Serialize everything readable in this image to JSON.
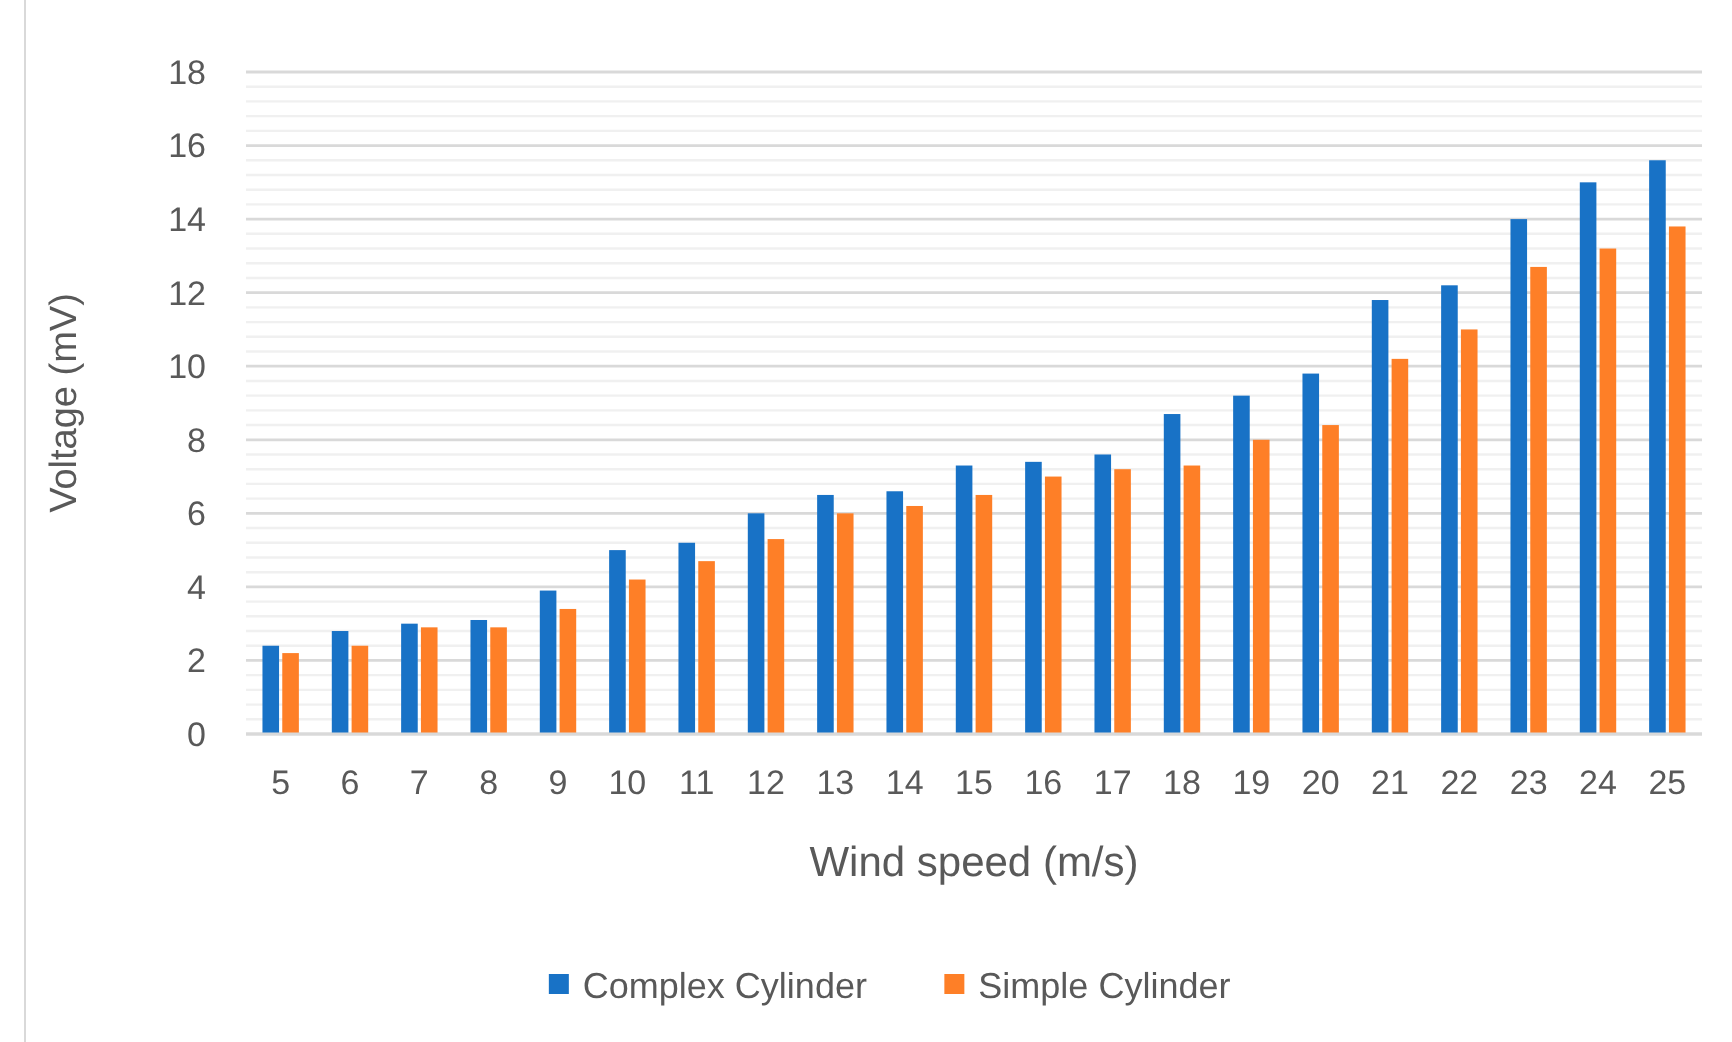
{
  "chart_data": {
    "type": "bar",
    "xlabel": "Wind speed (m/s)",
    "ylabel": "Voltage (mV)",
    "categories": [
      "5",
      "6",
      "7",
      "8",
      "9",
      "10",
      "11",
      "12",
      "13",
      "14",
      "15",
      "16",
      "17",
      "18",
      "19",
      "20",
      "21",
      "22",
      "23",
      "24",
      "25"
    ],
    "series": [
      {
        "name": "Complex Cylinder",
        "color": "#1872c6",
        "values": [
          2.4,
          2.8,
          3.0,
          3.1,
          3.9,
          5.0,
          5.2,
          6.0,
          6.5,
          6.6,
          7.3,
          7.4,
          7.6,
          8.7,
          9.2,
          9.8,
          11.8,
          12.2,
          14.0,
          15.0,
          15.6
        ]
      },
      {
        "name": "Simple Cylinder",
        "color": "#fe7f27",
        "values": [
          2.2,
          2.4,
          2.9,
          2.9,
          3.4,
          4.2,
          4.7,
          5.3,
          6.0,
          6.2,
          6.5,
          7.0,
          7.2,
          7.3,
          8.0,
          8.4,
          10.2,
          11.0,
          12.7,
          13.2,
          13.8
        ]
      }
    ],
    "ylim": [
      0,
      18
    ],
    "yticks": [
      0,
      {
        "value": 0.4,
        "label": null
      },
      {
        "value": 0.8,
        "label": null
      },
      {
        "value": 1.2,
        "label": null
      },
      {
        "value": 1.6,
        "label": null
      },
      2,
      {
        "value": 2.4,
        "label": null
      },
      {
        "value": 2.8,
        "label": null
      },
      {
        "value": 3.2,
        "label": null
      },
      {
        "value": 3.6,
        "label": null
      },
      4,
      {
        "value": 4.4,
        "label": null
      },
      {
        "value": 4.8,
        "label": null
      },
      {
        "value": 5.2,
        "label": null
      },
      {
        "value": 5.6,
        "label": null
      },
      6,
      {
        "value": 6.4,
        "label": null
      },
      {
        "value": 6.8,
        "label": null
      },
      {
        "value": 7.2,
        "label": null
      },
      {
        "value": 7.6,
        "label": null
      },
      8,
      {
        "value": 8.4,
        "label": null
      },
      {
        "value": 8.8,
        "label": null
      },
      {
        "value": 9.2,
        "label": null
      },
      {
        "value": 9.6,
        "label": null
      },
      10,
      {
        "value": 10.4,
        "label": null
      },
      {
        "value": 10.8,
        "label": null
      },
      {
        "value": 11.2,
        "label": null
      },
      {
        "value": 11.6,
        "label": null
      },
      12,
      {
        "value": 12.4,
        "label": null
      },
      {
        "value": 12.8,
        "label": null
      },
      {
        "value": 13.2,
        "label": null
      },
      {
        "value": 13.6,
        "label": null
      },
      14,
      {
        "value": 14.4,
        "label": null
      },
      {
        "value": 14.8,
        "label": null
      },
      {
        "value": 15.2,
        "label": null
      },
      {
        "value": 15.6,
        "label": null
      },
      16,
      {
        "value": 16.4,
        "label": null
      },
      {
        "value": 16.8,
        "label": null
      },
      {
        "value": 17.2,
        "label": null
      },
      {
        "value": 17.6,
        "label": null
      },
      18
    ],
    "grid": "y",
    "legend": "bottom"
  }
}
